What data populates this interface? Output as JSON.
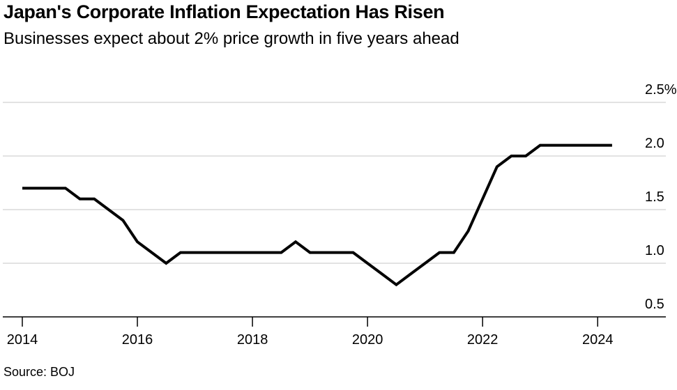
{
  "title": "Japan's Corporate Inflation Expectation Has Risen",
  "subtitle": "Businesses expect about 2% price growth in five years ahead",
  "source": "Source: BOJ",
  "chart_data": {
    "type": "line",
    "title": "Japan's Corporate Inflation Expectation Has Risen",
    "subtitle": "Businesses expect about 2% price growth in five years ahead",
    "xlabel": "",
    "ylabel": "",
    "xlim": [
      2014.0,
      2025.1
    ],
    "ylim": [
      0.5,
      2.5
    ],
    "y_axis_position": "right",
    "grid": "horizontal",
    "line_color": "#000000",
    "grid_color": "#d9d9d9",
    "x_ticks": [
      {
        "value": 2014,
        "label": "2014"
      },
      {
        "value": 2016,
        "label": "2016"
      },
      {
        "value": 2018,
        "label": "2018"
      },
      {
        "value": 2020,
        "label": "2020"
      },
      {
        "value": 2022,
        "label": "2022"
      },
      {
        "value": 2024,
        "label": "2024"
      }
    ],
    "y_ticks": [
      {
        "value": 2.5,
        "label": "2.5%"
      },
      {
        "value": 2.0,
        "label": "2.0"
      },
      {
        "value": 1.5,
        "label": "1.5"
      },
      {
        "value": 1.0,
        "label": "1.0"
      },
      {
        "value": 0.5,
        "label": "0.5"
      }
    ],
    "series": [
      {
        "x": [
          2014.0,
          2014.75,
          2015.0,
          2015.25,
          2015.75,
          2016.0,
          2016.5,
          2016.75,
          2017.0,
          2017.25,
          2017.5,
          2017.75,
          2018.0,
          2018.25,
          2018.5,
          2018.75,
          2019.0,
          2019.25,
          2019.5,
          2019.75,
          2020.0,
          2020.25,
          2020.5,
          2020.75,
          2021.0,
          2021.25,
          2021.5,
          2021.75,
          2022.0,
          2022.25,
          2022.5,
          2022.75,
          2023.0,
          2023.25,
          2023.5,
          2023.75,
          2024.0,
          2024.25
        ],
        "y": [
          1.7,
          1.7,
          1.6,
          1.6,
          1.4,
          1.2,
          1.0,
          1.1,
          1.1,
          1.1,
          1.1,
          1.1,
          1.1,
          1.1,
          1.1,
          1.2,
          1.1,
          1.1,
          1.1,
          1.1,
          1.0,
          0.9,
          0.8,
          0.9,
          1.0,
          1.1,
          1.1,
          1.3,
          1.6,
          1.9,
          2.0,
          2.0,
          2.1,
          2.1,
          2.1,
          2.1,
          2.1,
          2.1
        ]
      }
    ]
  }
}
